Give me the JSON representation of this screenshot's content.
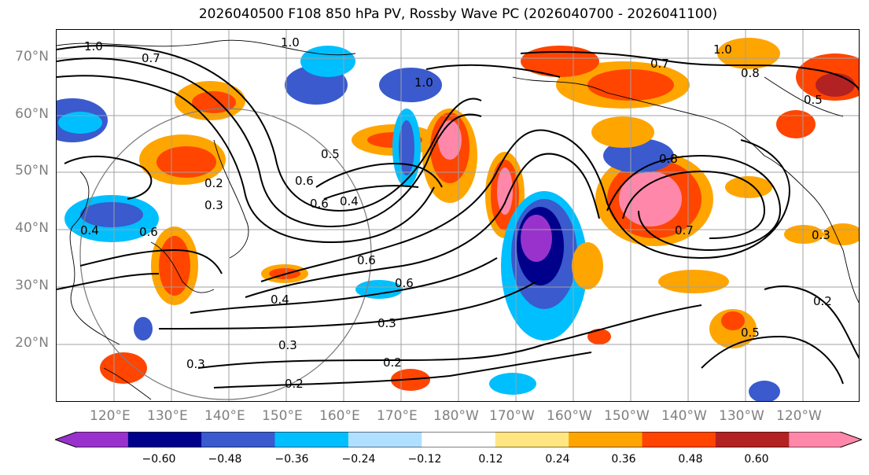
{
  "title": "2026040500 F108 850 hPa PV, Rossby Wave PC (2026040700 - 2026041100)",
  "map": {
    "region": "North Pacific",
    "projection": "PlateCarree",
    "lat_labels": [
      "70°N",
      "60°N",
      "50°N",
      "40°N",
      "30°N",
      "20°N"
    ],
    "lon_labels": [
      "120°E",
      "130°E",
      "140°E",
      "150°E",
      "160°E",
      "170°E",
      "180°W",
      "170°W",
      "160°W",
      "150°W",
      "140°W",
      "130°W",
      "120°W"
    ],
    "contour_labels": [
      "1.0",
      "0.7",
      "1.0",
      "1.0",
      "0.7",
      "0.6",
      "0.5",
      "0.6",
      "0.4",
      "0.6",
      "0.2",
      "0.3",
      "0.4",
      "0.6",
      "0.6",
      "0.4",
      "0.3",
      "0.3",
      "0.2",
      "0.2",
      "0.3",
      "0.8",
      "0.7",
      "0.5",
      "0.3",
      "0.2",
      "1.0",
      "0.8",
      "0.5"
    ]
  },
  "colorbar": {
    "ticks": [
      "−0.60",
      "−0.48",
      "−0.36",
      "−0.24",
      "−0.12",
      "0.12",
      "0.24",
      "0.36",
      "0.48",
      "0.60"
    ],
    "colors": [
      "#9932cc",
      "#00008b",
      "#3a5acd",
      "#00bfff",
      "#b0e0ff",
      "#ffffff",
      "#ffe680",
      "#ffa500",
      "#ff4500",
      "#b22222",
      "#ff88aa"
    ]
  }
}
